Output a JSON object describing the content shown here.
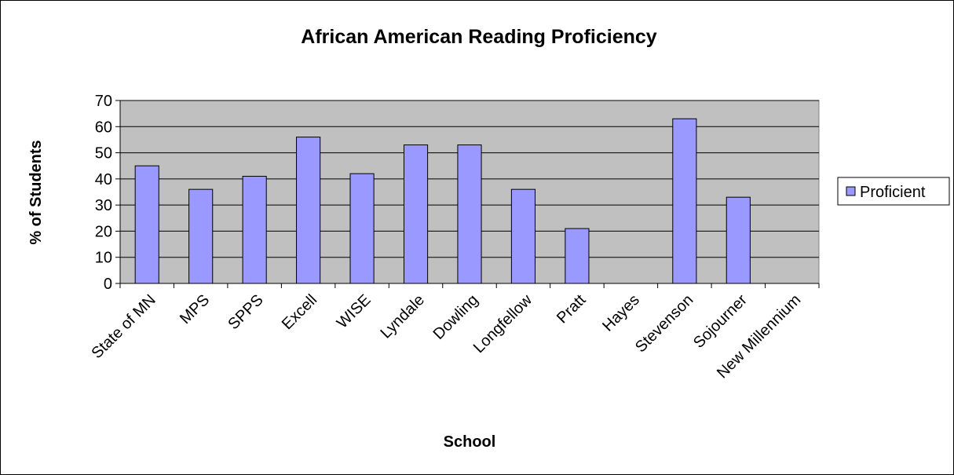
{
  "chart_data": {
    "type": "bar",
    "title": "African American Reading Proficiency",
    "xlabel": "School",
    "ylabel": "% of Students",
    "categories": [
      "State of MN",
      "MPS",
      "SPPS",
      "Excell",
      "WISE",
      "Lyndale",
      "Dowling",
      "Longfellow",
      "Pratt",
      "Hayes",
      "Stevenson",
      "Sojourner",
      "New Millennium"
    ],
    "series": [
      {
        "name": "Proficient",
        "values": [
          45,
          36,
          41,
          56,
          42,
          53,
          53,
          36,
          21,
          0,
          63,
          33,
          0
        ],
        "color": "#9999ff"
      }
    ],
    "ylim": [
      0,
      70
    ],
    "yticks": [
      0,
      10,
      20,
      30,
      40,
      50,
      60,
      70
    ],
    "grid": true,
    "plot_background": "#c0c0c0",
    "legend_position": "right"
  }
}
